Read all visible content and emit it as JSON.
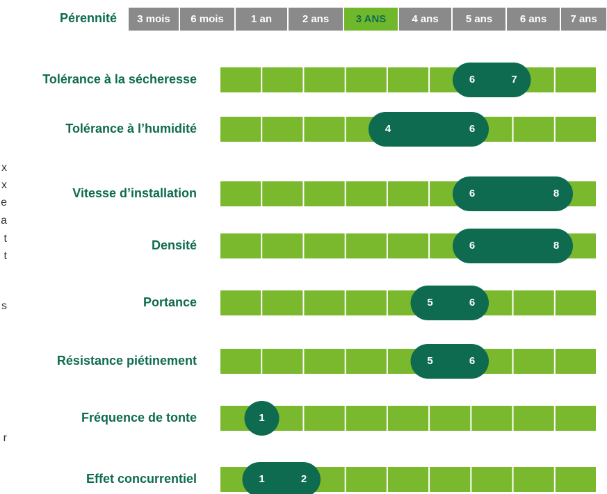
{
  "header": {
    "label": "Pérennité",
    "scale": [
      "3 mois",
      "6 mois",
      "1 an",
      "2 ans",
      "3 ANS",
      "4 ans",
      "5 ans",
      "6 ans",
      "7 ans"
    ],
    "selected": 4
  },
  "rows": [
    {
      "label": "Tolérance à la sécheresse",
      "low": 6,
      "high": 7
    },
    {
      "label": "Tolérance à l’humidité",
      "low": 4,
      "high": 6
    },
    {
      "label": "Vitesse d’installation",
      "low": 6,
      "high": 8
    },
    {
      "label": "Densité",
      "low": 6,
      "high": 8
    },
    {
      "label": "Portance",
      "low": 5,
      "high": 6
    },
    {
      "label": "Résistance piétinement",
      "low": 5,
      "high": 6
    },
    {
      "label": "Fréquence de tonte",
      "low": 1,
      "high": 1
    },
    {
      "label": "Effet concurrentiel",
      "low": 1,
      "high": 2
    }
  ],
  "fragments": [
    "x",
    "x",
    "e",
    "a",
    "t",
    "t",
    "s",
    "r"
  ]
}
